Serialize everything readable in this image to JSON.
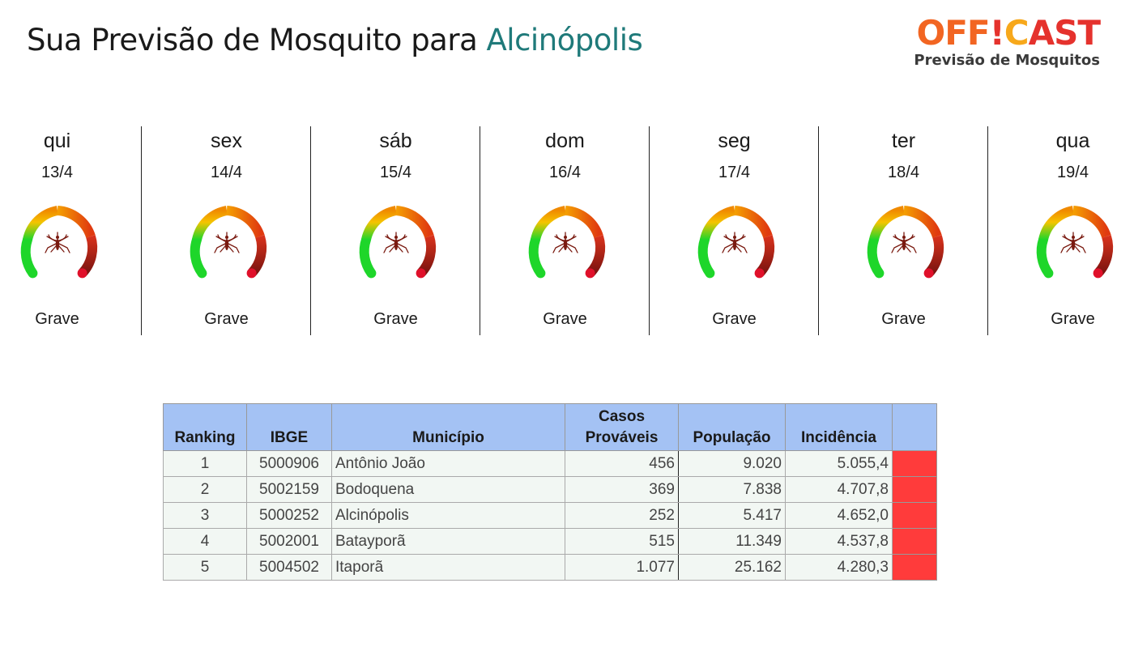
{
  "header": {
    "title_prefix": "Sua Previsão de Mosquito para ",
    "city": "Alcinópolis"
  },
  "logo": {
    "word_part1": "OFF",
    "word_mark": "!",
    "word_part2": "C",
    "word_part3": "AST",
    "subtitle": "Previsão de Mosquitos",
    "colors": {
      "orange": "#f26522",
      "yellow": "#f7a81b",
      "green": "#5cb85c",
      "red": "#e5322d"
    }
  },
  "forecast": [
    {
      "day": "qui",
      "date": "13/4",
      "level": "Grave",
      "gauge_value": 1.0
    },
    {
      "day": "sex",
      "date": "14/4",
      "level": "Grave",
      "gauge_value": 1.0
    },
    {
      "day": "sáb",
      "date": "15/4",
      "level": "Grave",
      "gauge_value": 1.0
    },
    {
      "day": "dom",
      "date": "16/4",
      "level": "Grave",
      "gauge_value": 1.0
    },
    {
      "day": "seg",
      "date": "17/4",
      "level": "Grave",
      "gauge_value": 1.0
    },
    {
      "day": "ter",
      "date": "18/4",
      "level": "Grave",
      "gauge_value": 1.0
    },
    {
      "day": "qua",
      "date": "19/4",
      "level": "Grave",
      "gauge_value": 1.0
    }
  ],
  "table": {
    "headers": {
      "ranking": "Ranking",
      "ibge": "IBGE",
      "municipio": "Município",
      "casos_line1": "Casos",
      "casos_line2": "Prováveis",
      "populacao": "População",
      "incidencia": "Incidência"
    },
    "rows": [
      {
        "ranking": "1",
        "ibge": "5000906",
        "municipio": "Antônio João",
        "casos": "456",
        "populacao": "9.020",
        "incidencia": "5.055,4",
        "flag_color": "#ff3b3b"
      },
      {
        "ranking": "2",
        "ibge": "5002159",
        "municipio": "Bodoquena",
        "casos": "369",
        "populacao": "7.838",
        "incidencia": "4.707,8",
        "flag_color": "#ff3b3b"
      },
      {
        "ranking": "3",
        "ibge": "5000252",
        "municipio": "Alcinópolis",
        "casos": "252",
        "populacao": "5.417",
        "incidencia": "4.652,0",
        "flag_color": "#ff3b3b"
      },
      {
        "ranking": "4",
        "ibge": "5002001",
        "municipio": "Batayporã",
        "casos": "515",
        "populacao": "11.349",
        "incidencia": "4.537,8",
        "flag_color": "#ff3b3b"
      },
      {
        "ranking": "5",
        "ibge": "5004502",
        "municipio": "Itaporã",
        "casos": "1.077",
        "populacao": "25.162",
        "incidencia": "4.280,3",
        "flag_color": "#ff3b3b"
      }
    ]
  }
}
